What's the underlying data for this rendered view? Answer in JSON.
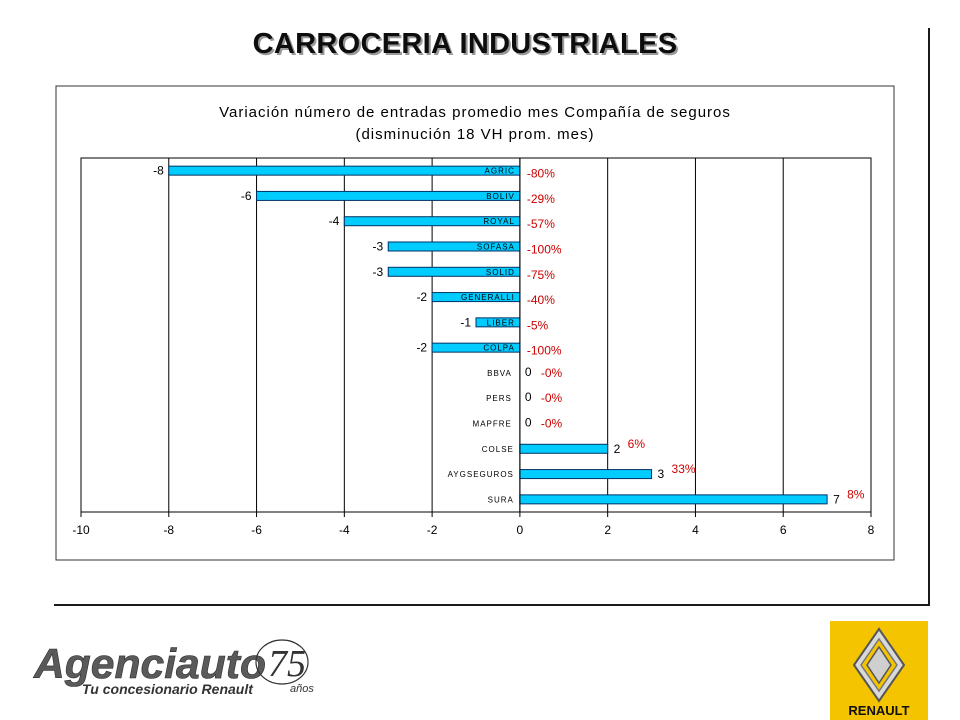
{
  "slide": {
    "title": "CARROCERIA INDUSTRIALES"
  },
  "colors": {
    "bar": "#00ccff",
    "bar_border": "#003366",
    "percent_text": "#cc0000",
    "frame": "#444444",
    "renault_yellow": "#f5c400"
  },
  "chart_data": {
    "type": "bar",
    "orientation": "horizontal",
    "title": "Variación número de entradas promedio mes Compañía de seguros",
    "subtitle": "(disminución 18 VH prom. mes)",
    "categories": [
      "AGRIC",
      "BOLIV",
      "ROYAL",
      "SOFASA",
      "SOLID",
      "GENERALLI",
      "LIBER",
      "COLPA",
      "BBVA",
      "PERS",
      "MAPFRE",
      "COLSE",
      "AYGSEGUROS",
      "SURA"
    ],
    "values": [
      -8,
      -6,
      -4,
      -3,
      -3,
      -2,
      -1,
      -2,
      0,
      0,
      0,
      2,
      3,
      7
    ],
    "value_labels": [
      "-8",
      "-6",
      "-4",
      "-3",
      "-3",
      "-2",
      "-1",
      "-2",
      "0",
      "0",
      "0",
      "2",
      "3",
      "7"
    ],
    "percent_labels": [
      "-80%",
      "-29%",
      "-57%",
      "-100%",
      "-75%",
      "-40%",
      "-5%",
      "-100%",
      "-0%",
      "-0%",
      "-0%",
      "6%",
      "33%",
      "8%"
    ],
    "xlim": [
      -10,
      8
    ],
    "xticks": [
      "-10",
      "-8",
      "-6",
      "-4",
      "-2",
      "0",
      "2",
      "4",
      "6",
      "8"
    ],
    "grid": "vertical",
    "legend": "none"
  },
  "logos": {
    "agenciauto": {
      "wordmark": "Agenciauto",
      "tagline": "Tu concesionario Renault",
      "anniversary": "75",
      "anniversary_unit": "años"
    },
    "renault": {
      "wordmark": "RENAULT"
    }
  }
}
